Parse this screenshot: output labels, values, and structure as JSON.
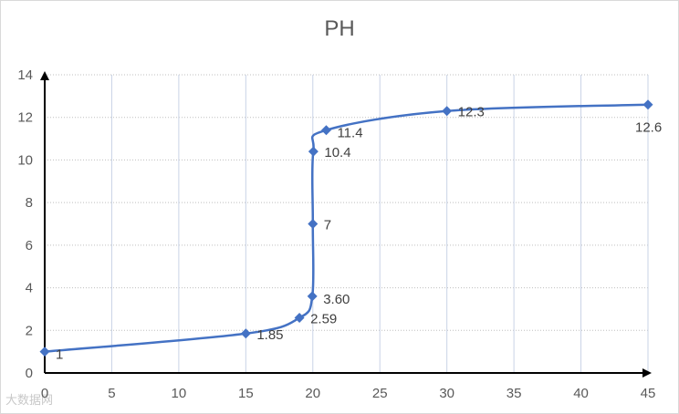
{
  "chart_data": {
    "type": "line",
    "title": "PH",
    "xlabel": "",
    "ylabel": "",
    "xlim": [
      0,
      45
    ],
    "ylim": [
      0,
      14
    ],
    "x_ticks": [
      0,
      5,
      10,
      15,
      20,
      25,
      30,
      35,
      40,
      45
    ],
    "y_ticks": [
      0,
      2,
      4,
      6,
      8,
      10,
      12,
      14
    ],
    "grid": "vertical",
    "line_color": "#4472c4",
    "grid_color": "#c9d3e6",
    "series": [
      {
        "x": [
          0,
          15,
          19,
          19.96,
          20,
          20.04,
          21,
          30,
          45
        ],
        "y": [
          1,
          1.85,
          2.59,
          3.6,
          7,
          10.4,
          11.4,
          12.3,
          12.6
        ],
        "labels": [
          "1",
          "1.85",
          "2.59",
          "3.60",
          "7",
          "10.4",
          "11.4",
          "12.3",
          "12.6"
        ]
      }
    ]
  },
  "watermark": "大数据网"
}
